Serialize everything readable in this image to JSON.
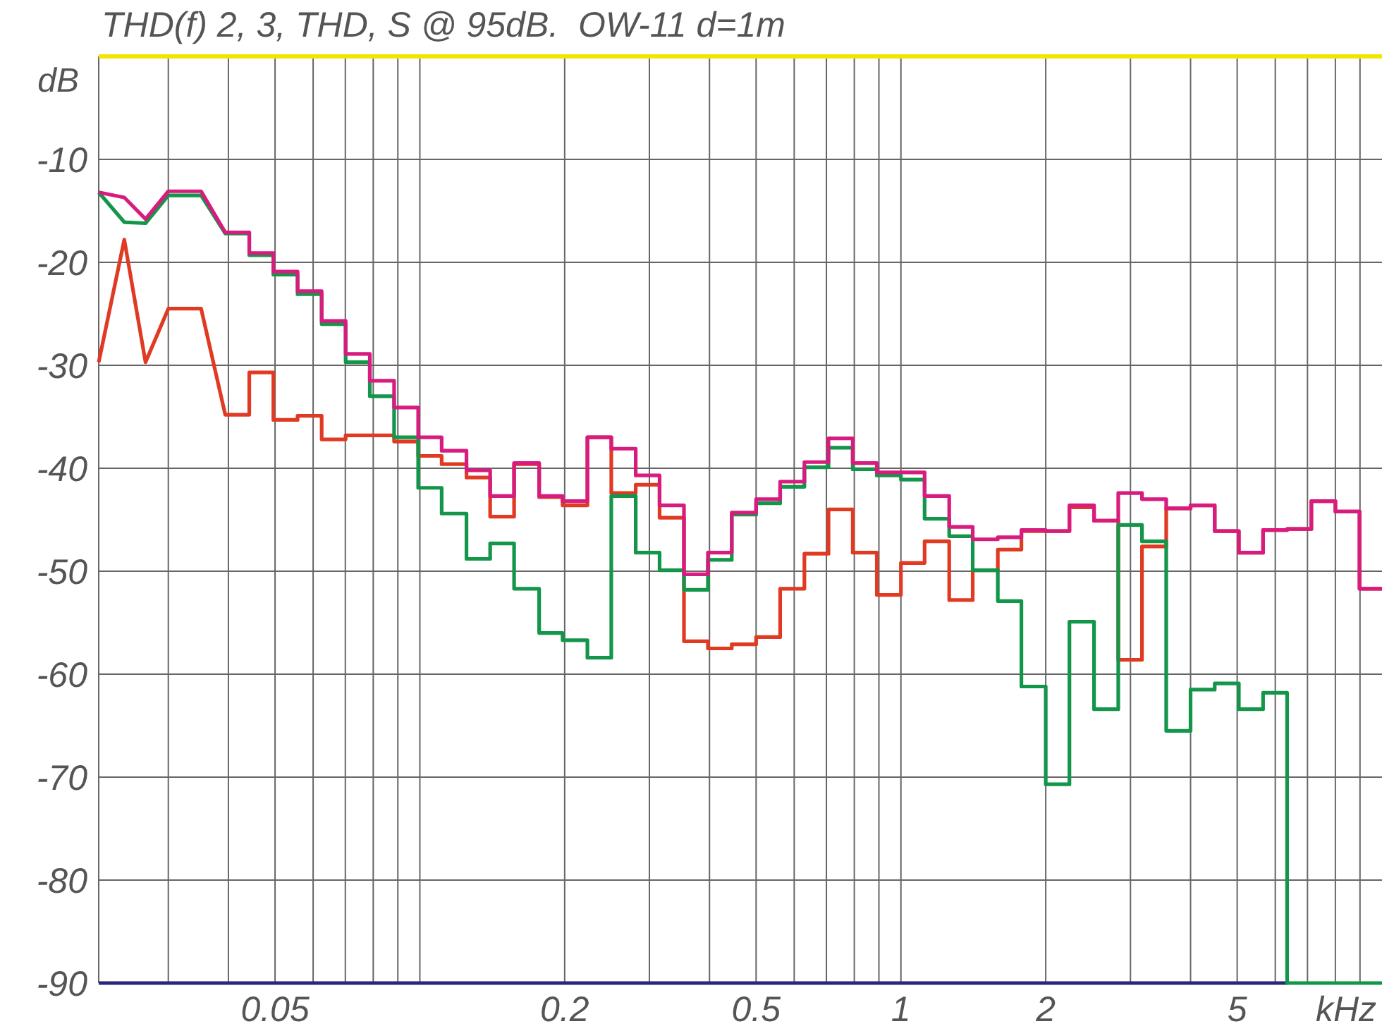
{
  "chart_data": {
    "type": "line",
    "title": "THD(f) 2, 3, THD, S @ 95dB.  OW-11 d=1m",
    "xlabel": "kHz",
    "ylabel": "dB",
    "log": "x",
    "grid": true,
    "marker": "none",
    "line_style": "solid",
    "xlim": [
      0.0215,
      10
    ],
    "ylim": [
      -90,
      0
    ],
    "xticks": [
      {
        "value": 0.03,
        "label": null
      },
      {
        "value": 0.04,
        "label": null
      },
      0.05,
      {
        "value": 0.06,
        "label": null
      },
      {
        "value": 0.07,
        "label": null
      },
      {
        "value": 0.08,
        "label": null
      },
      {
        "value": 0.09,
        "label": null
      },
      {
        "value": 0.1,
        "label": null
      },
      0.2,
      {
        "value": 0.3,
        "label": null
      },
      {
        "value": 0.4,
        "label": null
      },
      0.5,
      {
        "value": 0.6,
        "label": null
      },
      {
        "value": 0.7,
        "label": null
      },
      {
        "value": 0.8,
        "label": null
      },
      {
        "value": 0.9,
        "label": null
      },
      1,
      2,
      {
        "value": 3,
        "label": null
      },
      {
        "value": 4,
        "label": null
      },
      5,
      {
        "value": 6,
        "label": null
      },
      {
        "value": 7,
        "label": null
      },
      {
        "value": 8,
        "label": null
      },
      {
        "value": 9,
        "label": null
      }
    ],
    "yticks": [
      -90,
      -80,
      -70,
      -60,
      -50,
      -40,
      -30,
      -20,
      -10
    ],
    "x": [
      0.0215,
      0.0243,
      0.0269,
      0.03,
      0.0351,
      0.0394,
      0.0442,
      0.0442,
      0.0496,
      0.0496,
      0.0557,
      0.0557,
      0.0625,
      0.0625,
      0.0701,
      0.0701,
      0.0787,
      0.0787,
      0.0884,
      0.0884,
      0.0992,
      0.0992,
      0.111,
      0.111,
      0.125,
      0.125,
      0.14,
      0.14,
      0.157,
      0.157,
      0.177,
      0.177,
      0.198,
      0.198,
      0.223,
      0.223,
      0.25,
      0.25,
      0.281,
      0.281,
      0.315,
      0.315,
      0.354,
      0.354,
      0.397,
      0.397,
      0.445,
      0.445,
      0.5,
      0.5,
      0.561,
      0.561,
      0.63,
      0.63,
      0.707,
      0.707,
      0.794,
      0.794,
      0.891,
      0.891,
      1,
      1,
      1.12,
      1.12,
      1.26,
      1.26,
      1.41,
      1.41,
      1.59,
      1.59,
      1.78,
      1.78,
      2,
      2,
      2.24,
      2.24,
      2.52,
      2.52,
      2.83,
      2.83,
      3.17,
      3.17,
      3.56,
      3.56,
      4,
      4,
      4.49,
      4.49,
      5.04,
      5.04,
      5.66,
      5.66,
      6.35,
      6.35,
      7.13,
      7.13,
      8,
      8,
      8.98,
      8.98,
      10
    ],
    "series": [
      {
        "color": "#28287a",
        "x": [
          0.0215,
          6.35
        ],
        "values": [
          -90,
          -90
        ]
      },
      {
        "color": "#e03a22",
        "values": [
          -29.7,
          -17.8,
          -29.7,
          -24.5,
          -24.5,
          -34.8,
          -34.8,
          -30.7,
          -30.7,
          -35.3,
          -35.3,
          -34.9,
          -34.9,
          -37.2,
          -37.2,
          -36.8,
          -36.8,
          -36.8,
          -36.8,
          -37.4,
          -37.4,
          -38.8,
          -38.8,
          -39.6,
          -39.6,
          -40.9,
          -40.9,
          -44.7,
          -44.7,
          -39.6,
          -39.6,
          -42.8,
          -42.8,
          -43.6,
          -43.6,
          -37,
          -37,
          -42.4,
          -42.4,
          -41.6,
          -41.6,
          -44.8,
          -44.8,
          -56.8,
          -56.8,
          -57.5,
          -57.5,
          -57.1,
          -57.1,
          -56.4,
          -56.4,
          -51.7,
          -51.7,
          -48.3,
          -48.3,
          -44,
          -44,
          -48.2,
          -48.2,
          -52.3,
          -52.3,
          -49.2,
          -49.2,
          -47.1,
          -47.1,
          -52.8,
          -52.8,
          -49.9,
          -49.9,
          -47.9,
          -47.9,
          -46.1,
          -46.1,
          -46.1,
          -46.1,
          -43.8,
          -43.8,
          -45.1,
          -45.1,
          -58.6,
          -58.6,
          -47.6,
          -47.6,
          -43.9,
          -43.9,
          -43.6,
          -43.6,
          -46.1,
          -46.1,
          -48.2,
          -48.2,
          -46,
          -46,
          -45.9,
          -45.9,
          -43.2,
          -43.2,
          -44.2,
          -44.2,
          -51.7,
          -51.7
        ]
      },
      {
        "color": "#14964a",
        "values": [
          -13.2,
          -16.1,
          -16.2,
          -13.5,
          -13.5,
          -17.2,
          -17.2,
          -19.3,
          -19.3,
          -21.2,
          -21.2,
          -23.1,
          -23.1,
          -26,
          -26,
          -29.7,
          -29.7,
          -33,
          -33,
          -37,
          -37,
          -41.9,
          -41.9,
          -44.4,
          -44.4,
          -48.8,
          -48.8,
          -47.3,
          -47.3,
          -51.7,
          -51.7,
          -56,
          -56,
          -56.7,
          -56.7,
          -58.4,
          -58.4,
          -42.7,
          -42.7,
          -48.2,
          -48.2,
          -49.9,
          -49.9,
          -51.8,
          -51.8,
          -48.9,
          -48.9,
          -44.5,
          -44.5,
          -43.4,
          -43.4,
          -41.8,
          -41.8,
          -39.9,
          -39.9,
          -38,
          -38,
          -40.1,
          -40.1,
          -40.7,
          -40.7,
          -41.1,
          -41.1,
          -44.9,
          -44.9,
          -46.6,
          -46.6,
          -49.9,
          -49.9,
          -52.9,
          -52.9,
          -61.2,
          -61.2,
          -70.7,
          -70.7,
          -54.9,
          -54.9,
          -63.4,
          -63.4,
          -45.5,
          -45.5,
          -47.1,
          -47.1,
          -65.5,
          -65.5,
          -61.5,
          -61.5,
          -60.9,
          -60.9,
          -63.4,
          -63.4,
          -61.8,
          -61.8,
          -90,
          -90,
          -90,
          -90,
          -90,
          -90,
          -90,
          -90
        ]
      },
      {
        "color": "#d81b7e",
        "values": [
          -13.2,
          -13.7,
          -15.8,
          -13.1,
          -13.1,
          -17.1,
          -17.1,
          -19.1,
          -19.1,
          -20.9,
          -20.9,
          -22.8,
          -22.8,
          -25.7,
          -25.7,
          -28.9,
          -28.9,
          -31.5,
          -31.5,
          -34.1,
          -34.1,
          -37,
          -37,
          -38.3,
          -38.3,
          -40.2,
          -40.2,
          -42.7,
          -42.7,
          -39.5,
          -39.5,
          -42.7,
          -42.7,
          -43.2,
          -43.2,
          -37,
          -37,
          -38.1,
          -38.1,
          -40.7,
          -40.7,
          -43.6,
          -43.6,
          -50.3,
          -50.3,
          -48.2,
          -48.2,
          -44.3,
          -44.3,
          -43,
          -43,
          -41.3,
          -41.3,
          -39.4,
          -39.4,
          -37.1,
          -37.1,
          -39.5,
          -39.5,
          -40.4,
          -40.4,
          -40.4,
          -40.4,
          -42.7,
          -42.7,
          -45.7,
          -45.7,
          -46.9,
          -46.9,
          -46.7,
          -46.7,
          -46,
          -46,
          -46.1,
          -46.1,
          -43.6,
          -43.6,
          -45.1,
          -45.1,
          -42.4,
          -42.4,
          -43,
          -43,
          -43.9,
          -43.9,
          -43.6,
          -43.6,
          -46.1,
          -46.1,
          -48.2,
          -48.2,
          -46,
          -46,
          -45.9,
          -45.9,
          -43.2,
          -43.2,
          -44.2,
          -44.2,
          -51.7,
          -51.7
        ]
      }
    ]
  }
}
